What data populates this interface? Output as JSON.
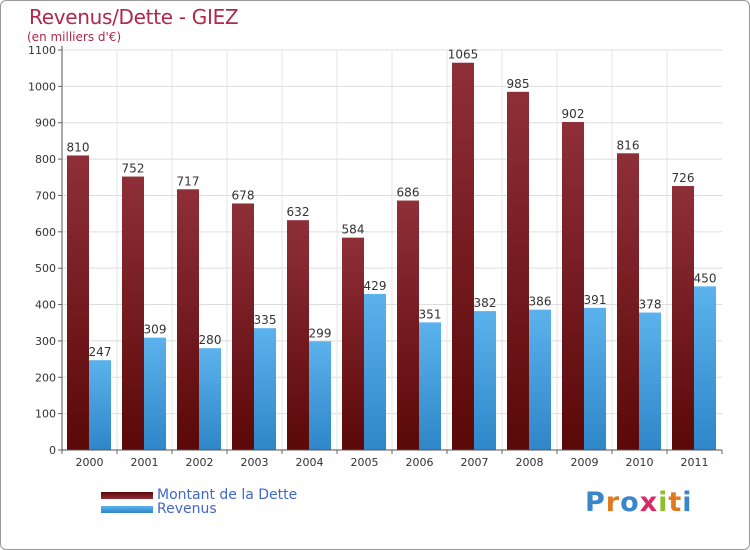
{
  "chart_data": {
    "type": "bar",
    "title": "Revenus/Dette - GIEZ",
    "subtitle": "(en milliers d'€)",
    "xlabel": "",
    "ylabel": "",
    "categories": [
      "2000",
      "2001",
      "2002",
      "2003",
      "2004",
      "2005",
      "2006",
      "2007",
      "2008",
      "2009",
      "2010",
      "2011"
    ],
    "series": [
      {
        "name": "Montant de la Dette",
        "values": [
          810,
          752,
          717,
          678,
          632,
          584,
          686,
          1065,
          985,
          902,
          816,
          726
        ],
        "color": "#7a1e24"
      },
      {
        "name": "Revenus",
        "values": [
          247,
          309,
          280,
          335,
          299,
          429,
          351,
          382,
          386,
          391,
          378,
          450
        ],
        "color": "#4aa0e0"
      }
    ],
    "ylim": [
      0,
      1100
    ],
    "yticks": [
      0,
      100,
      200,
      300,
      400,
      500,
      600,
      700,
      800,
      900,
      1000,
      1100
    ],
    "grid": true,
    "legend_position": "bottom-left",
    "data_labels": true
  },
  "logo": {
    "text": "Proxiti",
    "letters": [
      {
        "ch": "P",
        "color": "#3a86c8"
      },
      {
        "ch": "r",
        "color": "#e07a20"
      },
      {
        "ch": "o",
        "color": "#3a86c8"
      },
      {
        "ch": "x",
        "color": "#d62b6a"
      },
      {
        "ch": "i",
        "color": "#8cbf2e"
      },
      {
        "ch": "t",
        "color": "#e07a20"
      },
      {
        "ch": "i",
        "color": "#3a86c8"
      }
    ]
  }
}
